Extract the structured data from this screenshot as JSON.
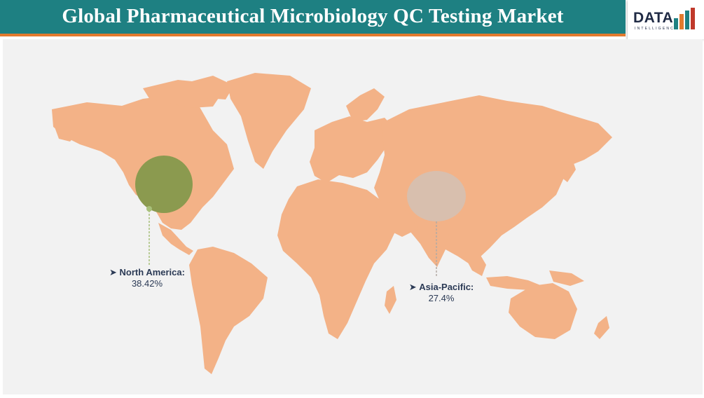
{
  "header": {
    "title": "Global Pharmaceutical Microbiology QC Testing Market"
  },
  "logo": {
    "text": "DATA",
    "subtext": "INTELLIGENCE"
  },
  "colors": {
    "header_bg": "#1e8082",
    "header_border": "#e27a2e",
    "land": "#f3b287",
    "map_bg": "#f2f2f2"
  },
  "map": {
    "regions": [
      {
        "name": "North America:",
        "value": "38.42%",
        "bubble_color": "#8b9a4f"
      },
      {
        "name": "Asia-Pacific:",
        "value": "27.4%",
        "bubble_color": "#d8bfae"
      }
    ]
  }
}
